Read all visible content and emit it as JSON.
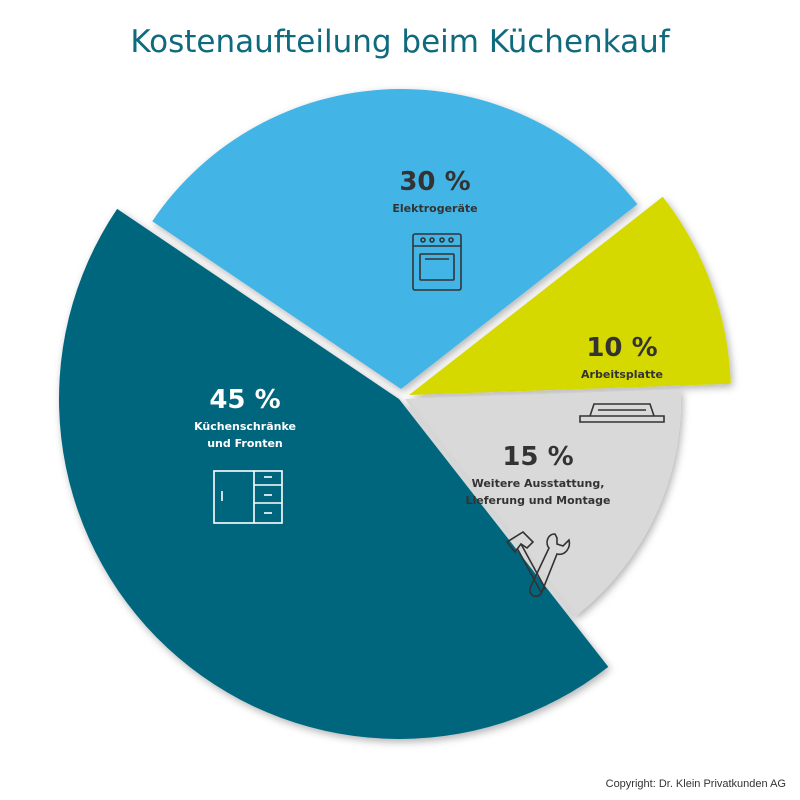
{
  "chart_data": {
    "type": "pie",
    "title": "Kostenaufteilung beim Küchenkauf",
    "slices": [
      {
        "label_lines": [
          "Elektrogeräte"
        ],
        "value": 30,
        "value_label": "30 %",
        "color": "#43b4e5",
        "text_color": "#333333",
        "icon": "stove-icon"
      },
      {
        "label_lines": [
          "Arbeitsplatte"
        ],
        "value": 10,
        "value_label": "10 %",
        "color": "#d6d900",
        "text_color": "#333333",
        "icon": "countertop-icon"
      },
      {
        "label_lines": [
          "Weitere Ausstattung,",
          "Lieferung und Montage"
        ],
        "value": 15,
        "value_label": "15 %",
        "color": "#d9d9d9",
        "text_color": "#333333",
        "icon": "hammer-wrench-icon"
      },
      {
        "label_lines": [
          "Küchenschränke",
          "und Fronten"
        ],
        "value": 45,
        "value_label": "45 %",
        "color": "#02667e",
        "text_color": "#ffffff",
        "icon": "cabinet-icon"
      }
    ]
  },
  "copyright": "Copyright: Dr. Klein Privatkunden AG"
}
